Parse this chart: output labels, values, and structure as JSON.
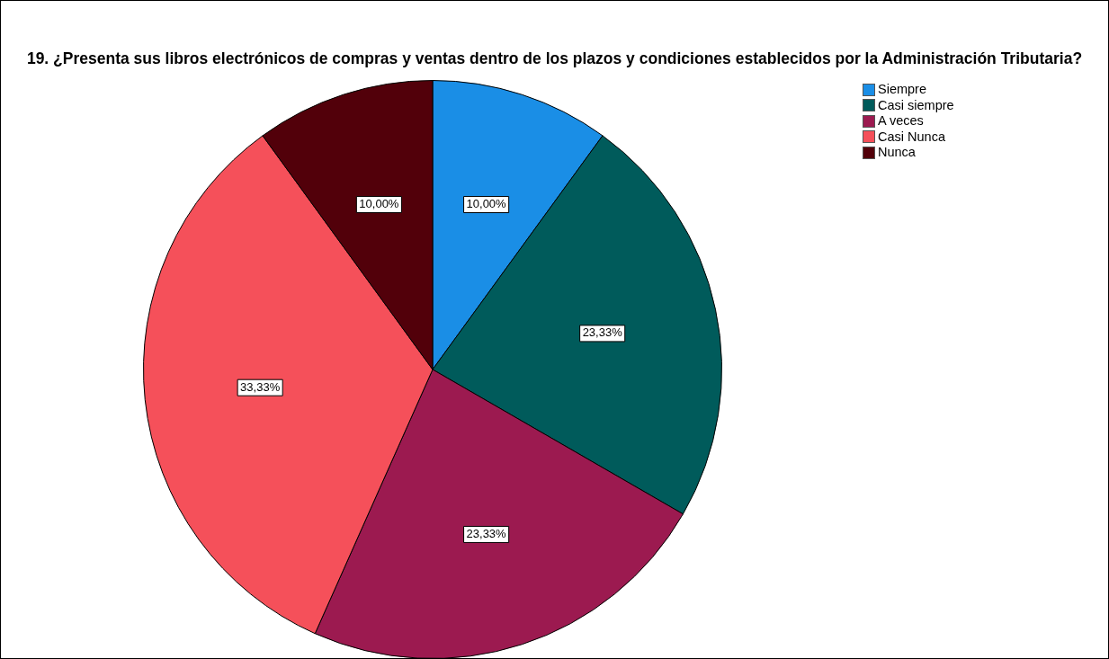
{
  "chart_data": {
    "type": "pie",
    "title": "19. ¿Presenta sus libros electrónicos de compras y ventas dentro de los plazos y condiciones establecidos por la Administración Tributaria?",
    "categories": [
      "Siempre",
      "Casi siempre",
      "A veces",
      "Casi Nunca",
      "Nunca"
    ],
    "values": [
      10,
      23.33,
      23.33,
      33.33,
      10
    ],
    "value_labels": [
      "10,00%",
      "23,33%",
      "23,33%",
      "33,33%",
      "10,00%"
    ],
    "colors": [
      "#1a8ee6",
      "#005b5b",
      "#9c1a50",
      "#f5505a",
      "#52000a"
    ],
    "legend": "top right"
  }
}
